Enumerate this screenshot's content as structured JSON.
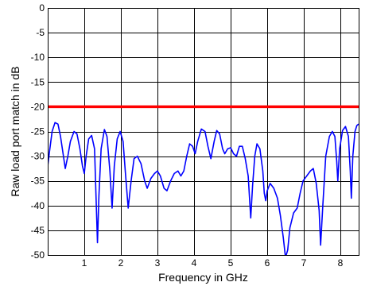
{
  "chart_data": {
    "type": "line",
    "title": "",
    "xlabel": "Frequency in GHz",
    "ylabel": "Raw load port match in dB",
    "xlim": [
      0,
      8.5
    ],
    "ylim": [
      -50,
      0
    ],
    "x_ticks": [
      1,
      2,
      3,
      4,
      5,
      6,
      7,
      8
    ],
    "y_ticks": [
      0,
      -5,
      -10,
      -15,
      -20,
      -25,
      -30,
      -35,
      -40,
      -45,
      -50
    ],
    "x_tick_labels": [
      "1",
      "2",
      "3",
      "4",
      "5",
      "6",
      "7",
      "8"
    ],
    "y_tick_labels": [
      "0",
      "-5",
      "-10",
      "-15",
      "-20",
      "-25",
      "-30",
      "-35",
      "-40",
      "-45",
      "-50"
    ],
    "grid": true,
    "colors": {
      "measured": "#0000ff",
      "limit": "#ff0000"
    },
    "series": [
      {
        "values": [
          [
            0.0,
            -32.0
          ],
          [
            0.05,
            -29.0
          ],
          [
            0.12,
            -25.0
          ],
          [
            0.2,
            -23.2
          ],
          [
            0.28,
            -23.5
          ],
          [
            0.35,
            -26.0
          ],
          [
            0.42,
            -29.5
          ],
          [
            0.48,
            -32.5
          ],
          [
            0.55,
            -30.0
          ],
          [
            0.62,
            -27.0
          ],
          [
            0.72,
            -25.0
          ],
          [
            0.8,
            -25.5
          ],
          [
            0.88,
            -28.5
          ],
          [
            0.95,
            -32.0
          ],
          [
            1.0,
            -33.5
          ],
          [
            1.05,
            -30.0
          ],
          [
            1.12,
            -26.5
          ],
          [
            1.2,
            -25.8
          ],
          [
            1.28,
            -28.5
          ],
          [
            1.32,
            -38.0
          ],
          [
            1.36,
            -47.5
          ],
          [
            1.4,
            -38.0
          ],
          [
            1.46,
            -28.5
          ],
          [
            1.55,
            -24.6
          ],
          [
            1.62,
            -26.0
          ],
          [
            1.7,
            -33.0
          ],
          [
            1.76,
            -40.5
          ],
          [
            1.82,
            -32.0
          ],
          [
            1.9,
            -26.5
          ],
          [
            1.98,
            -25.0
          ],
          [
            2.06,
            -27.0
          ],
          [
            2.12,
            -33.0
          ],
          [
            2.2,
            -40.5
          ],
          [
            2.28,
            -35.0
          ],
          [
            2.36,
            -30.5
          ],
          [
            2.45,
            -30.0
          ],
          [
            2.55,
            -31.5
          ],
          [
            2.65,
            -35.0
          ],
          [
            2.72,
            -36.5
          ],
          [
            2.82,
            -34.5
          ],
          [
            2.92,
            -33.5
          ],
          [
            3.0,
            -33.0
          ],
          [
            3.08,
            -34.0
          ],
          [
            3.18,
            -36.5
          ],
          [
            3.26,
            -37.0
          ],
          [
            3.36,
            -35.0
          ],
          [
            3.46,
            -33.5
          ],
          [
            3.56,
            -33.0
          ],
          [
            3.64,
            -34.0
          ],
          [
            3.72,
            -33.0
          ],
          [
            3.8,
            -30.0
          ],
          [
            3.88,
            -27.5
          ],
          [
            3.96,
            -28.0
          ],
          [
            4.03,
            -29.5
          ],
          [
            4.1,
            -27.0
          ],
          [
            4.2,
            -24.5
          ],
          [
            4.3,
            -25.0
          ],
          [
            4.38,
            -28.0
          ],
          [
            4.46,
            -30.5
          ],
          [
            4.55,
            -27.0
          ],
          [
            4.62,
            -24.8
          ],
          [
            4.7,
            -25.5
          ],
          [
            4.78,
            -28.5
          ],
          [
            4.84,
            -29.5
          ],
          [
            4.92,
            -28.5
          ],
          [
            5.0,
            -28.3
          ],
          [
            5.08,
            -29.5
          ],
          [
            5.16,
            -30.0
          ],
          [
            5.24,
            -28.0
          ],
          [
            5.32,
            -28.0
          ],
          [
            5.4,
            -30.5
          ],
          [
            5.48,
            -34.0
          ],
          [
            5.55,
            -42.5
          ],
          [
            5.6,
            -36.0
          ],
          [
            5.66,
            -30.0
          ],
          [
            5.72,
            -27.5
          ],
          [
            5.8,
            -28.5
          ],
          [
            5.88,
            -33.0
          ],
          [
            5.92,
            -37.5
          ],
          [
            5.96,
            -39.0
          ],
          [
            6.0,
            -37.0
          ],
          [
            6.08,
            -35.5
          ],
          [
            6.18,
            -36.5
          ],
          [
            6.28,
            -38.5
          ],
          [
            6.36,
            -42.0
          ],
          [
            6.44,
            -46.5
          ],
          [
            6.5,
            -50.5
          ],
          [
            6.56,
            -49.0
          ],
          [
            6.62,
            -44.5
          ],
          [
            6.72,
            -41.5
          ],
          [
            6.82,
            -40.5
          ],
          [
            6.9,
            -37.5
          ],
          [
            6.98,
            -35.0
          ],
          [
            7.08,
            -34.0
          ],
          [
            7.18,
            -33.0
          ],
          [
            7.26,
            -32.5
          ],
          [
            7.34,
            -35.5
          ],
          [
            7.42,
            -41.0
          ],
          [
            7.46,
            -48.0
          ],
          [
            7.52,
            -40.0
          ],
          [
            7.6,
            -30.0
          ],
          [
            7.7,
            -26.0
          ],
          [
            7.78,
            -25.0
          ],
          [
            7.85,
            -26.0
          ],
          [
            7.9,
            -31.0
          ],
          [
            7.93,
            -35.0
          ],
          [
            7.98,
            -28.5
          ],
          [
            8.06,
            -24.8
          ],
          [
            8.14,
            -24.0
          ],
          [
            8.22,
            -26.0
          ],
          [
            8.27,
            -33.0
          ],
          [
            8.3,
            -38.5
          ],
          [
            8.34,
            -30.0
          ],
          [
            8.4,
            -25.0
          ],
          [
            8.45,
            -23.8
          ],
          [
            8.5,
            -23.5
          ]
        ]
      },
      {
        "values": [
          [
            0,
            -20
          ],
          [
            8.5,
            -20
          ]
        ]
      }
    ]
  }
}
